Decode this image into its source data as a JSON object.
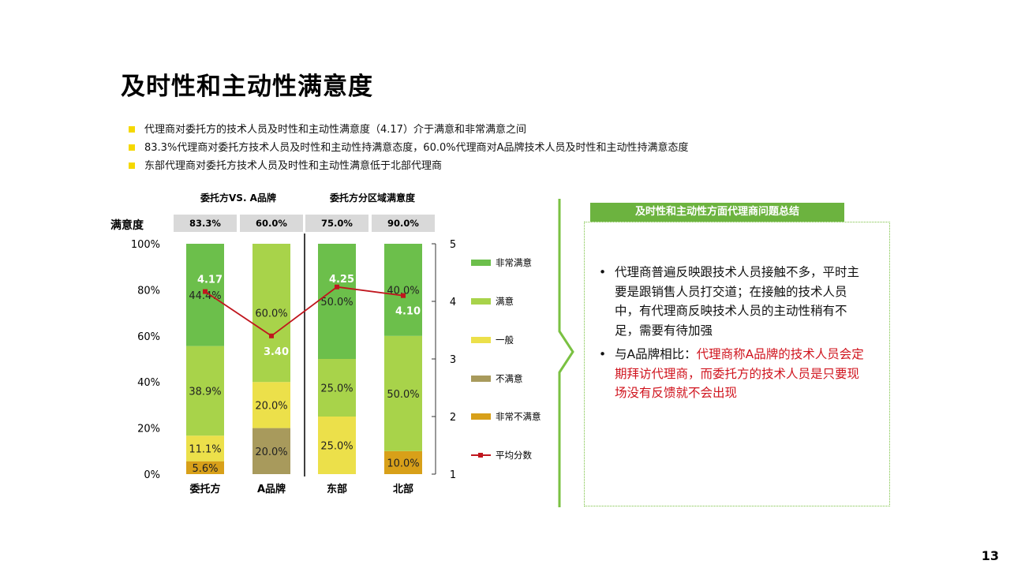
{
  "title": "及时性和主动性满意度",
  "bullets": [
    "代理商对委托方的技术人员及时性和主动性满意度（4.17）介于满意和非常满意之间",
    "83.3%代理商对委托方技术人员及时性和主动性持满意态度，60.0%代理商对A品牌技术人员及时性和主动性持满意态度",
    "东部代理商对委托方技术人员及时性和主动性满意低于北部代理商"
  ],
  "colors": {
    "very_satisfied": "#6cbf4b",
    "satisfied": "#a8d34a",
    "neutral": "#ece04a",
    "dissatisfied": "#a89a5c",
    "very_dissatisfied": "#d8a019",
    "avg_line": "#c0161e",
    "accent_green": "#6cb33f",
    "bullet_yellow": "#f5d800",
    "highlight_red": "#d0141e"
  },
  "chart_data": {
    "type": "bar",
    "stacked": true,
    "group_labels": [
      "委托方VS. A品牌",
      "委托方分区域满意度"
    ],
    "satisfaction_label": "满意度",
    "categories": [
      "委托方",
      "A品牌",
      "东部",
      "北部"
    ],
    "satisfaction_rates": [
      "83.3%",
      "60.0%",
      "75.0%",
      "90.0%"
    ],
    "series": [
      {
        "name": "非常不满意",
        "key": "very_dissatisfied",
        "values": [
          5.6,
          0,
          0,
          10.0
        ]
      },
      {
        "name": "不满意",
        "key": "dissatisfied",
        "values": [
          0,
          20.0,
          0,
          0
        ]
      },
      {
        "name": "一般",
        "key": "neutral",
        "values": [
          11.1,
          20.0,
          25.0,
          0
        ]
      },
      {
        "name": "满意",
        "key": "satisfied",
        "values": [
          38.9,
          60.0,
          25.0,
          50.0
        ]
      },
      {
        "name": "非常满意",
        "key": "very_satisfied",
        "values": [
          44.4,
          0,
          50.0,
          40.0
        ]
      }
    ],
    "avg_series": {
      "name": "平均分数",
      "values": [
        4.17,
        3.4,
        4.25,
        4.1
      ],
      "labels": [
        "4.17",
        "3.40",
        "4.25",
        "4.10"
      ]
    },
    "ylim": [
      0,
      100
    ],
    "y_ticks": [
      "0%",
      "20%",
      "40%",
      "60%",
      "80%",
      "100%"
    ],
    "y2lim": [
      1,
      5
    ],
    "y2_ticks": [
      "1",
      "2",
      "3",
      "4",
      "5"
    ],
    "legend_order": [
      "非常满意",
      "满意",
      "一般",
      "不满意",
      "非常不满意",
      "平均分数"
    ],
    "legend_position": "right",
    "grid": false
  },
  "panel": {
    "header": "及时性和主动性方面代理商问题总结",
    "item1": "代理商普遍反映跟技术人员接触不多，平时主要是跟销售人员打交道；在接触的技术人员中，有代理商反映技术人员的主动性稍有不足，需要有待加强",
    "item2_prefix": "与A品牌相比：",
    "item2_highlight": "代理商称A品牌的技术人员会定期拜访代理商，而委托方的技术人员是只要现场没有反馈就不会出现"
  },
  "page_number": "13"
}
